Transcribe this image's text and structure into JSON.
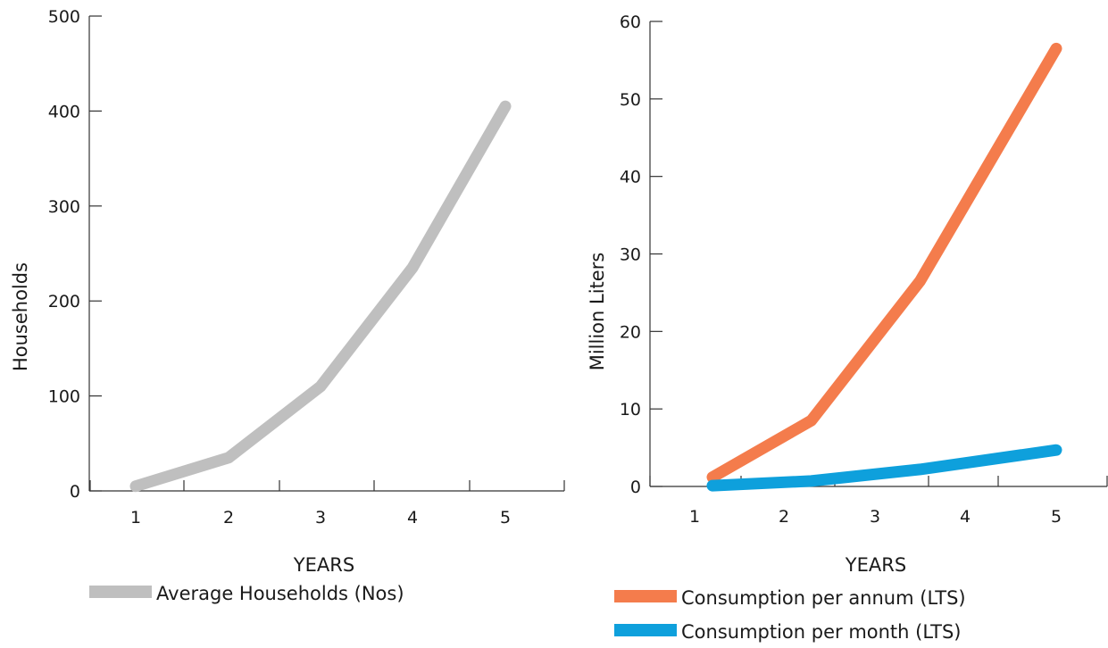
{
  "chart_data": [
    {
      "type": "line",
      "x": [
        1,
        2,
        3,
        4,
        5
      ],
      "xlabel": "YEARS",
      "ylabel": "Households",
      "ylim": [
        0,
        500
      ],
      "yticks": [
        0,
        100,
        200,
        300,
        400,
        500
      ],
      "xticks": [
        "1",
        "2",
        "3",
        "4",
        "5"
      ],
      "legend_position": "bottom",
      "series": [
        {
          "name": "Average Households (Nos)",
          "color": "#bfbfbf",
          "values": [
            5,
            35,
            110,
            235,
            405
          ]
        }
      ]
    },
    {
      "type": "line",
      "x": [
        1,
        2,
        3,
        4,
        5
      ],
      "xlabel": "YEARS",
      "ylabel": "Million Liters",
      "ylim": [
        0,
        60
      ],
      "yticks": [
        0,
        10,
        20,
        30,
        40,
        50,
        60
      ],
      "xticks": [
        "1",
        "2",
        "3",
        "4",
        "5"
      ],
      "legend_position": "bottom",
      "series": [
        {
          "name": "Consumption per annum (LTS)",
          "color": "#f47c4c",
          "values": [
            1.2,
            8.5,
            26.5,
            56.5
          ],
          "x": [
            1.2,
            2.3,
            3.5,
            5
          ]
        },
        {
          "name": "Consumption per month (LTS)",
          "color": "#0ea0dc",
          "values": [
            0.1,
            0.7,
            2.2,
            4.7
          ],
          "x": [
            1.2,
            2.3,
            3.5,
            5
          ]
        }
      ]
    }
  ]
}
